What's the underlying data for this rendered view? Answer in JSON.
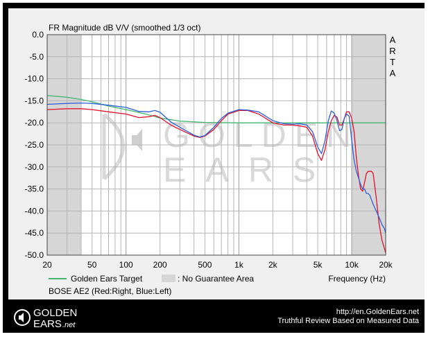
{
  "chart_data": {
    "type": "line",
    "title": "FR Magnitude dB V/V (smoothed 1/3 oct)",
    "side_label": "ARTA",
    "xlabel": "Frequency (Hz)",
    "x_scale": "log",
    "xlim": [
      20,
      20000
    ],
    "ylim": [
      -50,
      0
    ],
    "x_ticks": [
      "20",
      "50",
      "100",
      "200",
      "500",
      "1k",
      "2k",
      "5k",
      "10k",
      "20k"
    ],
    "y_ticks": [
      "0.0",
      "-5.0",
      "-10.0",
      "-15.0",
      "-20.0",
      "-25.0",
      "-30.0",
      "-35.0",
      "-40.0",
      "-45.0",
      "-50.0"
    ],
    "grid": true,
    "no_guarantee_ranges": [
      [
        20,
        40
      ],
      [
        10000,
        20000
      ]
    ],
    "legend": [
      {
        "label": "Golden Ears Target",
        "color": "#44b870",
        "kind": "line"
      },
      {
        "label": ": No Guarantee Area",
        "color": "#d6d6d6",
        "kind": "box"
      }
    ],
    "device_label": "BOSE AE2 (Red:Right, Blue:Left)",
    "series": [
      {
        "name": "Golden Ears Target",
        "color": "#44b870",
        "x": [
          20,
          30,
          40,
          50,
          70,
          100,
          150,
          200,
          300,
          500,
          1000,
          20000
        ],
        "y": [
          -13.8,
          -14.2,
          -14.7,
          -15.2,
          -16.2,
          -17.0,
          -18.0,
          -18.9,
          -19.6,
          -19.9,
          -20.0,
          -20.0
        ]
      },
      {
        "name": "Red:Right",
        "color": "#e0102a",
        "x": [
          20,
          30,
          40,
          50,
          70,
          100,
          130,
          160,
          180,
          200,
          250,
          300,
          400,
          450,
          500,
          600,
          700,
          800,
          1000,
          1200,
          1500,
          2000,
          2500,
          3000,
          3500,
          4000,
          4500,
          5000,
          5400,
          5800,
          6200,
          6600,
          7000,
          7400,
          7800,
          8200,
          8600,
          9000,
          9500,
          10000,
          10500,
          11000,
          11500,
          12000,
          12500,
          13000,
          13500,
          14000,
          14500,
          15000,
          15500,
          16500,
          17500,
          18500,
          19500,
          20000
        ],
        "y": [
          -17.0,
          -16.8,
          -16.8,
          -17.0,
          -17.5,
          -18.0,
          -18.8,
          -18.6,
          -18.3,
          -18.8,
          -20.5,
          -21.5,
          -23.0,
          -23.3,
          -23.0,
          -21.5,
          -19.5,
          -18.0,
          -17.2,
          -17.2,
          -18.0,
          -20.0,
          -20.5,
          -20.5,
          -20.7,
          -21.0,
          -23.0,
          -27.0,
          -28.5,
          -26.0,
          -22.0,
          -19.5,
          -18.3,
          -18.7,
          -20.5,
          -20.5,
          -19.0,
          -17.5,
          -17.5,
          -19.0,
          -22.0,
          -28.0,
          -32.0,
          -35.0,
          -35.5,
          -33.5,
          -31.5,
          -31.0,
          -31.0,
          -31.0,
          -31.5,
          -37.0,
          -43.0,
          -46.5,
          -48.5,
          -49.5
        ]
      },
      {
        "name": "Blue:Left",
        "color": "#2e5fd8",
        "x": [
          20,
          30,
          40,
          50,
          70,
          100,
          130,
          160,
          180,
          200,
          250,
          300,
          400,
          450,
          500,
          600,
          700,
          800,
          1000,
          1200,
          1500,
          2000,
          2500,
          3000,
          3500,
          4000,
          4500,
          5000,
          5400,
          5800,
          6200,
          6600,
          7000,
          7400,
          7800,
          8200,
          8600,
          9000,
          9500,
          10000,
          10500,
          11000,
          11500,
          12000,
          12500,
          13000,
          13500,
          14000,
          14500,
          15000,
          15500,
          16500,
          17500,
          18500,
          19500,
          20000
        ],
        "y": [
          -15.8,
          -15.6,
          -15.5,
          -15.6,
          -16.0,
          -16.5,
          -17.4,
          -17.5,
          -17.2,
          -17.6,
          -19.8,
          -21.0,
          -22.8,
          -23.2,
          -22.9,
          -21.0,
          -19.0,
          -17.8,
          -17.0,
          -17.1,
          -17.5,
          -19.5,
          -20.2,
          -20.3,
          -20.2,
          -20.5,
          -22.0,
          -25.5,
          -27.0,
          -24.0,
          -19.5,
          -17.3,
          -17.8,
          -19.5,
          -21.8,
          -21.5,
          -19.0,
          -18.0,
          -18.5,
          -24.0,
          -28.5,
          -31.0,
          -32.5,
          -34.0,
          -35.0,
          -35.0,
          -36.0,
          -36.0,
          -36.5,
          -37.5,
          -38.5,
          -40.0,
          -41.5,
          -43.0,
          -44.0,
          -45.0
        ]
      }
    ]
  },
  "watermark": {
    "line1": "GOLDEN",
    "line2": "EARS"
  },
  "footer": {
    "brand_top": "GOLDEN",
    "brand_bottom": "EARS",
    "brand_suffix": ".net",
    "url": "http://en.GoldenEars.net",
    "tagline": "Truthful Review Based on Measured Data"
  }
}
